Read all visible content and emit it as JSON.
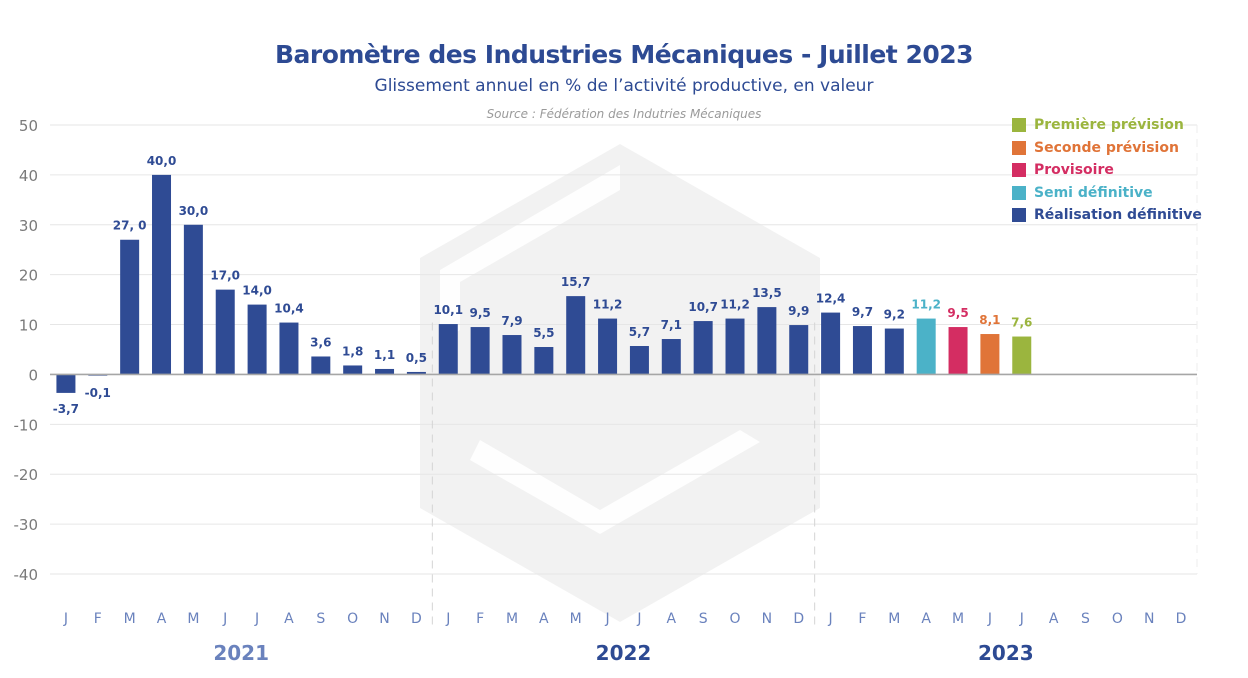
{
  "header": {
    "title": "Baromètre des Industries Mécaniques - Juillet 2023",
    "subtitle": "Glissement annuel en % de l’activité productive, en valeur",
    "source": "Source : Fédération des Indutries Mécaniques"
  },
  "legend": [
    {
      "label": "Première prévision",
      "color": "#9bb53e"
    },
    {
      "label": "Seconde prévision",
      "color": "#e07438"
    },
    {
      "label": "Provisoire",
      "color": "#d42d62"
    },
    {
      "label": "Semi définitive",
      "color": "#4bb2c8"
    },
    {
      "label": "Réalisation définitive",
      "color": "#2f4b94"
    }
  ],
  "chart_data": {
    "type": "bar",
    "title": "Baromètre des Industries Mécaniques - Juillet 2023",
    "subtitle": "Glissement annuel en % de l’activité productive, en valeur",
    "xlabel": "",
    "ylabel": "",
    "ylim": [
      -40,
      50
    ],
    "yticks": [
      50,
      40,
      30,
      20,
      10,
      0,
      -10,
      -20,
      -30,
      -40
    ],
    "grid": true,
    "legend_position": "top-right",
    "years": [
      {
        "label": "2021",
        "color": "#6a82bd"
      },
      {
        "label": "2022",
        "color": "#2d4a93"
      },
      {
        "label": "2023",
        "color": "#2d4a93"
      }
    ],
    "month_labels": [
      "J",
      "F",
      "M",
      "A",
      "M",
      "J",
      "J",
      "A",
      "S",
      "O",
      "N",
      "D"
    ],
    "series": [
      {
        "name": "Réalisation définitive",
        "color": "#2f4b94"
      },
      {
        "name": "Semi définitive",
        "color": "#4bb2c8"
      },
      {
        "name": "Provisoire",
        "color": "#d42d62"
      },
      {
        "name": "Seconde prévision",
        "color": "#e07438"
      },
      {
        "name": "Première prévision",
        "color": "#9bb53e"
      }
    ],
    "points": [
      {
        "year": "2021",
        "month": "J",
        "value": -3.7,
        "label": "-3,7",
        "series": "Réalisation définitive"
      },
      {
        "year": "2021",
        "month": "F",
        "value": -0.1,
        "label": "-0,1",
        "series": "Réalisation définitive"
      },
      {
        "year": "2021",
        "month": "M",
        "value": 27.0,
        "label": "27, 0",
        "series": "Réalisation définitive"
      },
      {
        "year": "2021",
        "month": "A",
        "value": 40.0,
        "label": "40,0",
        "series": "Réalisation définitive"
      },
      {
        "year": "2021",
        "month": "M",
        "value": 30.0,
        "label": "30,0",
        "series": "Réalisation définitive"
      },
      {
        "year": "2021",
        "month": "J",
        "value": 17.0,
        "label": "17,0",
        "series": "Réalisation définitive"
      },
      {
        "year": "2021",
        "month": "J",
        "value": 14.0,
        "label": "14,0",
        "series": "Réalisation définitive"
      },
      {
        "year": "2021",
        "month": "A",
        "value": 10.4,
        "label": "10,4",
        "series": "Réalisation définitive"
      },
      {
        "year": "2021",
        "month": "S",
        "value": 3.6,
        "label": "3,6",
        "series": "Réalisation définitive"
      },
      {
        "year": "2021",
        "month": "O",
        "value": 1.8,
        "label": "1,8",
        "series": "Réalisation définitive"
      },
      {
        "year": "2021",
        "month": "N",
        "value": 1.1,
        "label": "1,1",
        "series": "Réalisation définitive"
      },
      {
        "year": "2021",
        "month": "D",
        "value": 0.5,
        "label": "0,5",
        "series": "Réalisation définitive"
      },
      {
        "year": "2022",
        "month": "J",
        "value": 10.1,
        "label": "10,1",
        "series": "Réalisation définitive"
      },
      {
        "year": "2022",
        "month": "F",
        "value": 9.5,
        "label": "9,5",
        "series": "Réalisation définitive"
      },
      {
        "year": "2022",
        "month": "M",
        "value": 7.9,
        "label": "7,9",
        "series": "Réalisation définitive"
      },
      {
        "year": "2022",
        "month": "A",
        "value": 5.5,
        "label": "5,5",
        "series": "Réalisation définitive"
      },
      {
        "year": "2022",
        "month": "M",
        "value": 15.7,
        "label": "15,7",
        "series": "Réalisation définitive"
      },
      {
        "year": "2022",
        "month": "J",
        "value": 11.2,
        "label": "11,2",
        "series": "Réalisation définitive"
      },
      {
        "year": "2022",
        "month": "J",
        "value": 5.7,
        "label": "5,7",
        "series": "Réalisation définitive"
      },
      {
        "year": "2022",
        "month": "A",
        "value": 7.1,
        "label": "7,1",
        "series": "Réalisation définitive"
      },
      {
        "year": "2022",
        "month": "S",
        "value": 10.7,
        "label": "10,7",
        "series": "Réalisation définitive"
      },
      {
        "year": "2022",
        "month": "O",
        "value": 11.2,
        "label": "11,2",
        "series": "Réalisation définitive"
      },
      {
        "year": "2022",
        "month": "N",
        "value": 13.5,
        "label": "13,5",
        "series": "Réalisation définitive"
      },
      {
        "year": "2022",
        "month": "D",
        "value": 9.9,
        "label": "9,9",
        "series": "Réalisation définitive"
      },
      {
        "year": "2023",
        "month": "J",
        "value": 12.4,
        "label": "12,4",
        "series": "Réalisation définitive"
      },
      {
        "year": "2023",
        "month": "F",
        "value": 9.7,
        "label": "9,7",
        "series": "Réalisation définitive"
      },
      {
        "year": "2023",
        "month": "M",
        "value": 9.2,
        "label": "9,2",
        "series": "Réalisation définitive"
      },
      {
        "year": "2023",
        "month": "A",
        "value": 11.2,
        "label": "11,2",
        "series": "Semi définitive"
      },
      {
        "year": "2023",
        "month": "M",
        "value": 9.5,
        "label": "9,5",
        "series": "Provisoire"
      },
      {
        "year": "2023",
        "month": "J",
        "value": 8.1,
        "label": "8,1",
        "series": "Seconde prévision"
      },
      {
        "year": "2023",
        "month": "J",
        "value": 7.6,
        "label": "7,6",
        "series": "Première prévision"
      },
      {
        "year": "2023",
        "month": "A",
        "value": null,
        "label": "",
        "series": ""
      },
      {
        "year": "2023",
        "month": "S",
        "value": null,
        "label": "",
        "series": ""
      },
      {
        "year": "2023",
        "month": "O",
        "value": null,
        "label": "",
        "series": ""
      },
      {
        "year": "2023",
        "month": "N",
        "value": null,
        "label": "",
        "series": ""
      },
      {
        "year": "2023",
        "month": "D",
        "value": null,
        "label": "",
        "series": ""
      }
    ]
  }
}
